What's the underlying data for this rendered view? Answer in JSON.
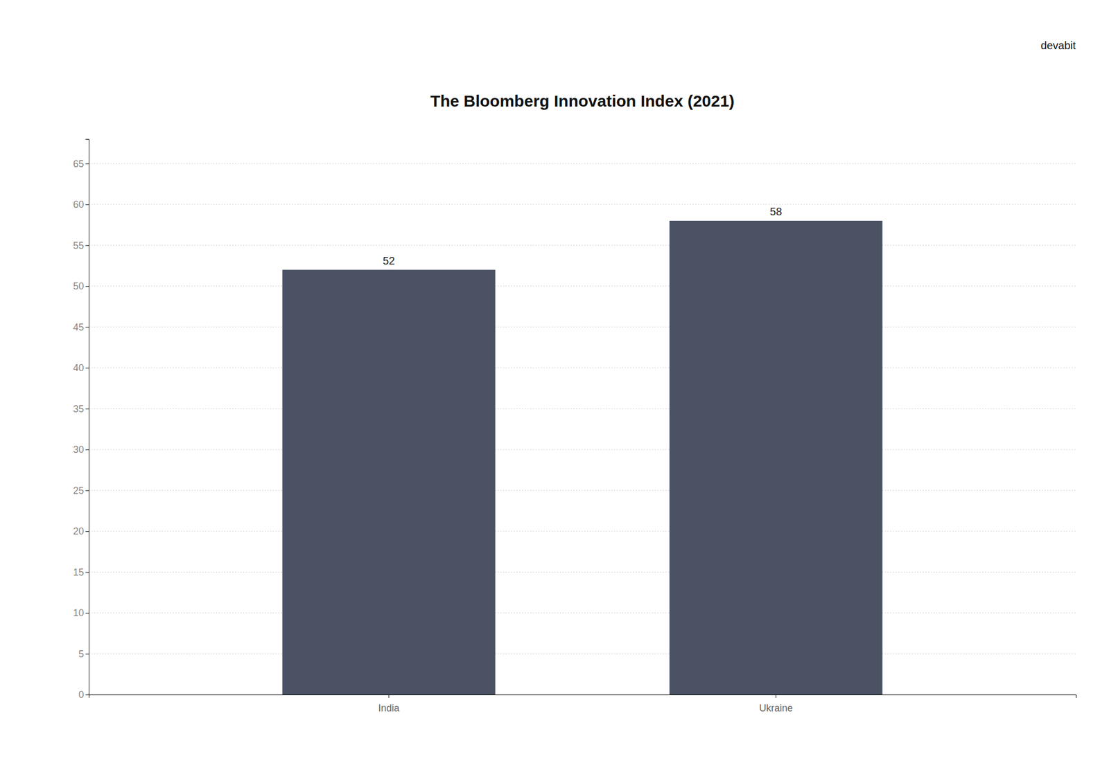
{
  "chart_data": {
    "type": "bar",
    "title": "The Bloomberg Innovation Index (2021)",
    "watermark": "devabit",
    "categories": [
      "India",
      "Ukraine"
    ],
    "values": [
      52,
      58
    ],
    "color": "#4a5264",
    "ylim": [
      0,
      68
    ],
    "yticks": [
      0,
      5,
      10,
      15,
      20,
      25,
      30,
      35,
      40,
      45,
      50,
      55,
      60,
      65
    ],
    "grid": true,
    "data_labels": true
  }
}
